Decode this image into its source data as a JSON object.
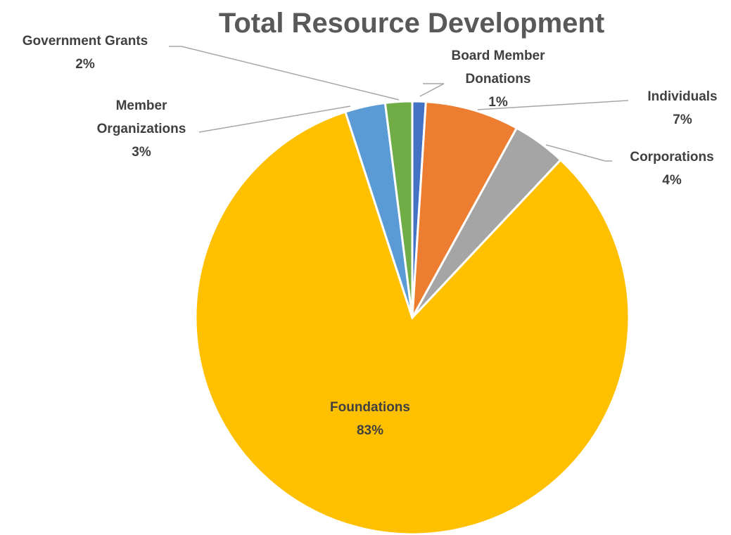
{
  "chart_data": {
    "type": "pie",
    "title": "Total Resource Development",
    "categories": [
      "Board Member Donations",
      "Individuals",
      "Corporations",
      "Foundations",
      "Member Organizations",
      "Government Grants"
    ],
    "values": [
      1,
      7,
      4,
      83,
      3,
      2
    ],
    "colors": [
      "#4472c4",
      "#ed7d31",
      "#a5a5a5",
      "#ffc000",
      "#5b9bd5",
      "#70ad47"
    ],
    "data_labels": [
      {
        "lines": [
          "Board Member",
          "Donations",
          "1%"
        ]
      },
      {
        "lines": [
          "Individuals",
          "7%"
        ]
      },
      {
        "lines": [
          "Corporations",
          "4%"
        ]
      },
      {
        "lines": [
          "Foundations",
          "83%"
        ]
      },
      {
        "lines": [
          "Member",
          "Organizations",
          "3%"
        ]
      },
      {
        "lines": [
          "Government Grants",
          "2%"
        ]
      }
    ],
    "legend": "none"
  }
}
